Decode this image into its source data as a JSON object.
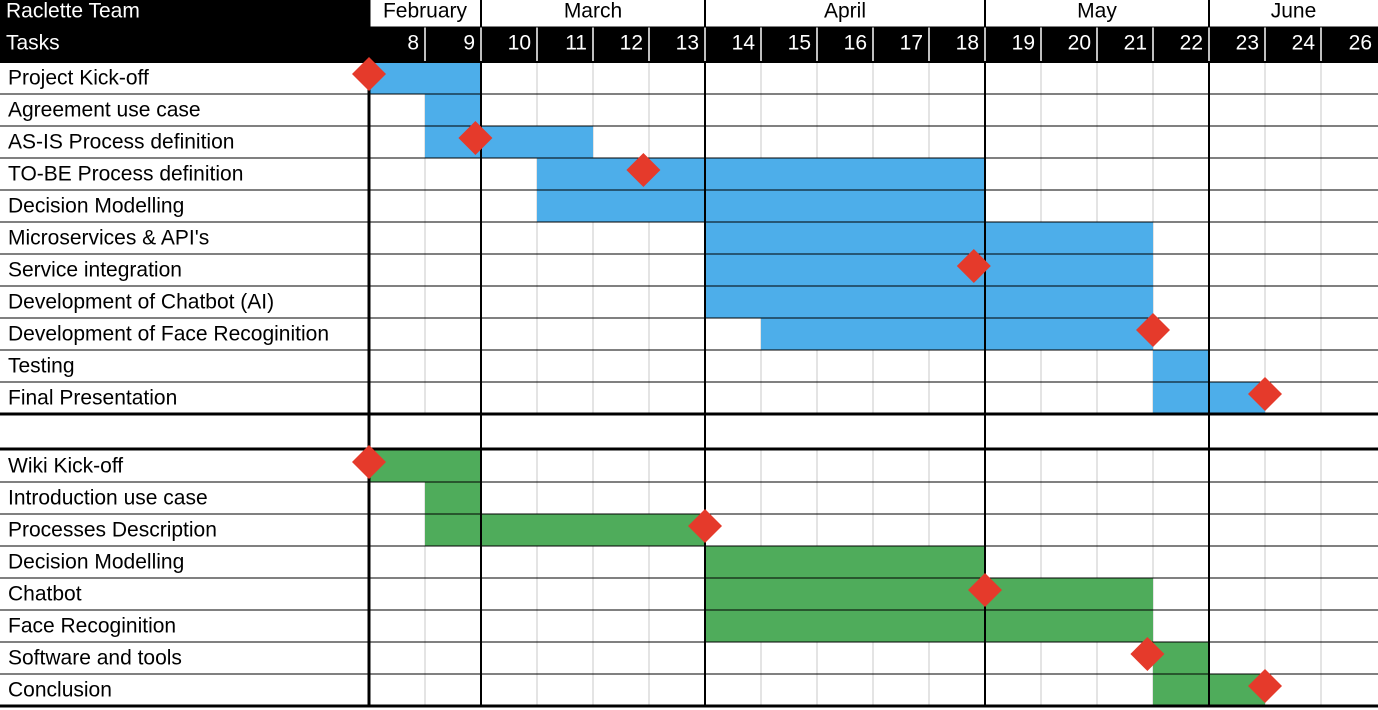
{
  "title": "Raclette Team",
  "tasks_header": "Tasks",
  "colors": {
    "header_bg": "#000000",
    "header_text": "#ffffff",
    "bar_blue": "#4daeea",
    "bar_green": "#4fac5b",
    "milestone": "#e53a2b",
    "grid_light": "#c8c8c8",
    "grid_heavy": "#000000"
  },
  "months": [
    {
      "label": "February",
      "weeks": [
        "8",
        "9"
      ]
    },
    {
      "label": "March",
      "weeks": [
        "10",
        "11",
        "12",
        "13"
      ]
    },
    {
      "label": "April",
      "weeks": [
        "14",
        "15",
        "16",
        "17",
        "18"
      ]
    },
    {
      "label": "May",
      "weeks": [
        "19",
        "20",
        "21",
        "22"
      ]
    },
    {
      "label": "June",
      "weeks": [
        "23",
        "24",
        "26"
      ]
    }
  ],
  "chart_data": {
    "type": "gantt",
    "title": "Raclette Team",
    "x_unit": "calendar week",
    "weeks": [
      "8",
      "9",
      "10",
      "11",
      "12",
      "13",
      "14",
      "15",
      "16",
      "17",
      "18",
      "19",
      "20",
      "21",
      "22",
      "23",
      "24",
      "26"
    ],
    "groups": [
      {
        "color": "blue",
        "tasks": [
          {
            "name": "Project Kick-off",
            "start_week": 8,
            "end_week": 9,
            "milestone_week": 8
          },
          {
            "name": "Agreement use case",
            "start_week": 9,
            "end_week": 9
          },
          {
            "name": "AS-IS Process definition",
            "start_week": 9,
            "end_week": 11,
            "milestone_week": 9.9
          },
          {
            "name": "TO-BE Process definition",
            "start_week": 11,
            "end_week": 18,
            "milestone_week": 12.9
          },
          {
            "name": "Decision Modelling",
            "start_week": 11,
            "end_week": 18
          },
          {
            "name": "Microservices & API's",
            "start_week": 14,
            "end_week": 21
          },
          {
            "name": "Service integration",
            "start_week": 14,
            "end_week": 21,
            "milestone_week": 18.8
          },
          {
            "name": "Development of Chatbot (AI)",
            "start_week": 14,
            "end_week": 21
          },
          {
            "name": "Development of Face Recoginition",
            "start_week": 15,
            "end_week": 21,
            "milestone_week": 22
          },
          {
            "name": "Testing",
            "start_week": 22,
            "end_week": 22
          },
          {
            "name": "Final Presentation",
            "start_week": 22,
            "end_week": 23,
            "milestone_week": 24
          }
        ]
      },
      {
        "color": "green",
        "tasks": [
          {
            "name": "Wiki Kick-off",
            "start_week": 8,
            "end_week": 9,
            "milestone_week": 8
          },
          {
            "name": "Introduction use case",
            "start_week": 9,
            "end_week": 9
          },
          {
            "name": "Processes Description",
            "start_week": 9,
            "end_week": 13,
            "milestone_week": 14
          },
          {
            "name": "Decision Modelling",
            "start_week": 14,
            "end_week": 18
          },
          {
            "name": "Chatbot",
            "start_week": 14,
            "end_week": 21,
            "milestone_week": 19
          },
          {
            "name": "Face Recoginition",
            "start_week": 14,
            "end_week": 21
          },
          {
            "name": "Software and tools",
            "start_week": 22,
            "end_week": 22,
            "milestone_week": 21.9
          },
          {
            "name": "Conclusion",
            "start_week": 22,
            "end_week": 23,
            "milestone_week": 24
          }
        ]
      }
    ]
  }
}
